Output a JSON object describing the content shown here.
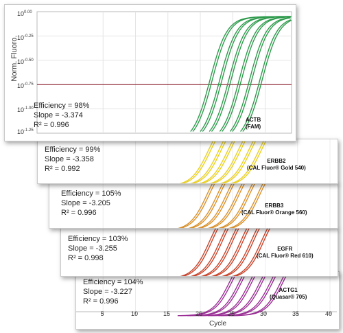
{
  "chart_data": [
    {
      "type": "line",
      "channel": "ACTB",
      "dye": "(FAM)",
      "efficiency": "Efficiency = 98%",
      "slope": "Slope = -3.374",
      "r2": "R² = 0.996",
      "color": "#2e9a4c",
      "ylabel": "Norm. Fluoro.",
      "yscale": "log",
      "y_ticks": [
        "0.00",
        "-0.25",
        "-0.50",
        "-0.75",
        "-1.00",
        "-1.25"
      ],
      "ylim": [
        -1.25,
        0.0
      ],
      "threshold_log": -0.75,
      "threshold_color": "#8b1a2b",
      "curve_midpoints": [
        21.5,
        23.0,
        24.4,
        26.0,
        27.6,
        29.2
      ],
      "grid": true
    },
    {
      "type": "line",
      "channel": "ERBB2",
      "dye": "(CAL Fluor® Gold 540)",
      "efficiency": "Efficiency = 99%",
      "slope": "Slope = -3.358",
      "r2": "R² = 0.992",
      "color": "#e9cf1f",
      "curve_midpoints": [
        21.2,
        22.8,
        24.2,
        25.8,
        27.4,
        29.0
      ]
    },
    {
      "type": "line",
      "channel": "ERBB3",
      "dye": "(CAL Fluor® Orange 560)",
      "efficiency": "Efficiency = 105%",
      "slope": "Slope = -3.205",
      "r2": "R² = 0.996",
      "color": "#d9902a",
      "curve_midpoints": [
        21.0,
        22.6,
        24.0,
        25.6,
        27.2,
        28.8
      ]
    },
    {
      "type": "line",
      "channel": "EGFR",
      "dye": "(CAL Fluor® Red 610)",
      "efficiency": "Efficiency = 103%",
      "slope": "Slope = -3.255",
      "r2": "R² = 0.998",
      "color": "#c8432a",
      "curve_midpoints": [
        21.4,
        23.0,
        24.6,
        26.2,
        27.8,
        29.4
      ]
    },
    {
      "type": "line",
      "channel": "ACTG1",
      "dye": "(Quasar® 705)",
      "efficiency": "Efficiency = 104%",
      "slope": "Slope = -3.227",
      "r2": "R² = 0.996",
      "color": "#9a2f95",
      "xlabel": "Cycle",
      "x_ticks": [
        5,
        10,
        15,
        20,
        25,
        30,
        35,
        40
      ],
      "xlim": [
        0,
        40
      ],
      "curve_midpoints": [
        24.5,
        26.0,
        27.6,
        29.2,
        30.8,
        32.4
      ],
      "grid": true
    }
  ]
}
